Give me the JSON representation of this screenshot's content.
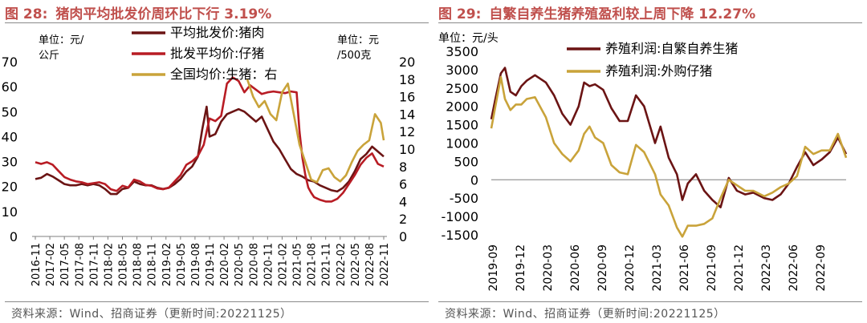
{
  "colors": {
    "title": "#c0504d",
    "dark_red": "#6b1414",
    "red": "#b81c24",
    "gold": "#c9a33a",
    "grid": "#bfbfbf"
  },
  "left": {
    "title_num": "图 28:",
    "title_text": "猪肉平均批发价周环比下行 3.19%",
    "unit_left": "单位：元/公斤",
    "unit_left_l1": "单位：元/",
    "unit_left_l2": "公斤",
    "unit_right_l1": "单位：元",
    "unit_right_l2": "/500克",
    "source": "资料来源：Wind、招商证券（更新时间:20221125）"
  },
  "right": {
    "title_num": "图 29:",
    "title_text": "自繁自养生猪养殖盈利较上周下降 12.27%",
    "unit": "单位：元/头",
    "source": "资料来源：Wind、招商证券（更新时间:20221125）"
  },
  "chart_data": [
    {
      "type": "line",
      "title": "猪肉平均批发价周环比下行 3.19%",
      "x_ticks": [
        "2016-11",
        "2017-02",
        "2017-05",
        "2017-08",
        "2017-11",
        "2018-02",
        "2018-05",
        "2018-08",
        "2018-11",
        "2019-02",
        "2019-05",
        "2019-08",
        "2019-11",
        "2020-02",
        "2020-05",
        "2020-08",
        "2020-11",
        "2021-02",
        "2021-05",
        "2021-08",
        "2021-11",
        "2022-02",
        "2022-05",
        "2022-08",
        "2022-11"
      ],
      "ylim_left": [
        0,
        70
      ],
      "yticks_left": [
        0,
        10,
        20,
        30,
        40,
        50,
        60,
        70
      ],
      "ylim_right": [
        0,
        20
      ],
      "yticks_right": [
        0,
        2,
        4,
        6,
        8,
        10,
        12,
        14,
        16,
        18,
        20
      ],
      "series": [
        {
          "name": "平均批发价:猪肉",
          "axis": "left",
          "color": "#6b1414",
          "x": [
            0,
            0.4,
            0.8,
            1.2,
            1.6,
            2,
            2.4,
            2.8,
            3.2,
            3.6,
            4,
            4.4,
            4.8,
            5.2,
            5.6,
            6,
            6.4,
            6.8,
            7.2,
            7.6,
            8,
            8.4,
            8.8,
            9.2,
            9.6,
            10,
            10.4,
            10.8,
            11.2,
            11.5,
            11.8,
            12,
            12.4,
            12.8,
            13.2,
            13.6,
            14,
            14.4,
            14.8,
            15.2,
            15.6,
            16,
            16.4,
            16.8,
            17.2,
            17.6,
            18,
            18.4,
            18.8,
            19.2,
            19.6,
            20,
            20.4,
            20.8,
            21.2,
            21.6,
            22,
            22.4,
            22.8,
            23.2,
            23.6,
            24
          ],
          "y": [
            23,
            23.5,
            25,
            24,
            22.5,
            21,
            20.5,
            20.5,
            21,
            20.5,
            21,
            20.5,
            19,
            17,
            17,
            19,
            19.5,
            22,
            21,
            20.5,
            20.5,
            19.5,
            19,
            19.5,
            21,
            23,
            26,
            28,
            32,
            43,
            52,
            40,
            41,
            46,
            49,
            50,
            51,
            50,
            48,
            46,
            48,
            43,
            38,
            35,
            31,
            27,
            25,
            24,
            22.5,
            22,
            20.5,
            19.5,
            18.5,
            18,
            19.5,
            22,
            26,
            31,
            33,
            36,
            34,
            32
          ]
        },
        {
          "name": "批发平均价:仔猪",
          "axis": "right",
          "color": "#b81c24",
          "x": [
            0,
            0.4,
            0.8,
            1.2,
            1.6,
            2,
            2.4,
            2.8,
            3.2,
            3.6,
            4,
            4.4,
            4.8,
            5.2,
            5.6,
            6,
            6.4,
            6.8,
            7.2,
            7.6,
            8,
            8.4,
            8.8,
            9.2,
            9.6,
            10,
            10.4,
            10.8,
            11.2,
            11.6,
            12,
            12.4,
            12.8,
            13.2,
            13.6,
            14,
            14.4,
            14.8,
            15.2,
            15.6,
            16,
            16.4,
            16.8,
            17.2,
            17.6,
            18,
            18.2,
            18.4,
            18.6,
            18.8,
            19,
            19.2,
            19.6,
            20,
            20.4,
            20.8,
            21.2,
            21.6,
            22,
            22.4,
            22.8,
            23.2,
            23.6,
            24
          ],
          "y": [
            8.5,
            8.3,
            8.5,
            8.2,
            7.5,
            6.8,
            6.5,
            6.3,
            6.2,
            6,
            6.1,
            6.2,
            6,
            5.4,
            5.2,
            5.8,
            5.6,
            6.5,
            6.3,
            5.9,
            5.8,
            5.5,
            5.4,
            5.6,
            6.3,
            7,
            8.2,
            8.6,
            9.2,
            10.5,
            13.5,
            13.2,
            13.8,
            17.5,
            18.2,
            17.8,
            16.5,
            17.3,
            16.8,
            16.3,
            16.5,
            16.6,
            16.5,
            16.4,
            16.6,
            16.5,
            12,
            9,
            7,
            5.6,
            5,
            4.5,
            4.2,
            4,
            4,
            4.3,
            5,
            6,
            7,
            8.2,
            9,
            9.5,
            8.3,
            8
          ]
        },
        {
          "name": "全国均价:生猪：右",
          "axis": "right",
          "color": "#c9a33a",
          "x": [
            14.6,
            15,
            15.4,
            15.8,
            16.2,
            16.6,
            17,
            17.4,
            17.8,
            18.2,
            18.6,
            19,
            19.4,
            19.8,
            20.2,
            20.6,
            21,
            21.4,
            21.8,
            22.2,
            22.6,
            23,
            23.4,
            23.8,
            24
          ],
          "y": [
            18,
            16,
            14.8,
            15.5,
            14,
            13.3,
            16.5,
            17.5,
            14,
            10.5,
            8.5,
            6.5,
            6.2,
            7.6,
            7.8,
            6.8,
            6.3,
            7,
            8.5,
            9.8,
            10.5,
            11,
            14,
            13,
            11
          ]
        }
      ]
    },
    {
      "type": "line",
      "title": "自繁自养生猪养殖盈利较上周下降 12.27%",
      "x_ticks": [
        "2019-09",
        "2019-12",
        "2020-03",
        "2020-06",
        "2020-09",
        "2020-12",
        "2021-03",
        "2021-06",
        "2021-09",
        "2021-12",
        "2022-03",
        "2022-06",
        "2022-09"
      ],
      "ylim": [
        -1500,
        3500
      ],
      "yticks": [
        -1500,
        -1000,
        -500,
        0,
        500,
        1000,
        1500,
        2000,
        2500,
        3000,
        3500
      ],
      "series": [
        {
          "name": "养殖利润:自繁自养生猪",
          "color": "#6b1414",
          "x": [
            0,
            0.15,
            0.35,
            0.5,
            0.7,
            0.9,
            1.1,
            1.3,
            1.6,
            2,
            2.3,
            2.6,
            2.9,
            3.2,
            3.4,
            3.6,
            3.8,
            4.1,
            4.4,
            4.7,
            5,
            5.3,
            5.6,
            6,
            6.2,
            6.5,
            6.8,
            7,
            7.2,
            7.5,
            7.8,
            8.1,
            8.4,
            8.7,
            9,
            9.3,
            9.6,
            10,
            10.3,
            10.6,
            10.9,
            11.2,
            11.5,
            11.8,
            12.1,
            12.4,
            12.7,
            13
          ],
          "y": [
            1650,
            2200,
            2900,
            3050,
            2400,
            2300,
            2550,
            2700,
            2850,
            2650,
            2300,
            1800,
            1500,
            2000,
            2650,
            2550,
            2600,
            2450,
            1950,
            1600,
            1600,
            2300,
            2000,
            1000,
            1450,
            600,
            150,
            -550,
            -100,
            150,
            -300,
            -550,
            -750,
            50,
            -300,
            -400,
            -350,
            -500,
            -550,
            -400,
            -100,
            350,
            750,
            400,
            550,
            750,
            1150,
            700
          ]
        },
        {
          "name": "养殖利润:外购仔猪",
          "color": "#c9a33a",
          "x": [
            0,
            0.15,
            0.35,
            0.5,
            0.7,
            0.9,
            1.1,
            1.3,
            1.6,
            2,
            2.3,
            2.6,
            2.9,
            3.2,
            3.4,
            3.6,
            3.8,
            4.1,
            4.4,
            4.7,
            5,
            5.3,
            5.6,
            6,
            6.2,
            6.5,
            6.8,
            7,
            7.2,
            7.5,
            7.8,
            8.1,
            8.4,
            8.7,
            9,
            9.3,
            9.6,
            10,
            10.3,
            10.6,
            10.9,
            11.2,
            11.5,
            11.8,
            12.1,
            12.4,
            12.7,
            13
          ],
          "y": [
            1400,
            2000,
            2800,
            2200,
            1900,
            2050,
            2050,
            2200,
            2250,
            1700,
            1000,
            700,
            500,
            800,
            1250,
            1450,
            1150,
            1000,
            400,
            200,
            150,
            950,
            750,
            150,
            -400,
            -700,
            -1300,
            -1550,
            -1250,
            -1250,
            -1200,
            -1050,
            -500,
            0,
            -150,
            -300,
            -300,
            -450,
            -350,
            -200,
            -100,
            100,
            900,
            700,
            800,
            800,
            1250,
            600
          ]
        }
      ]
    }
  ]
}
